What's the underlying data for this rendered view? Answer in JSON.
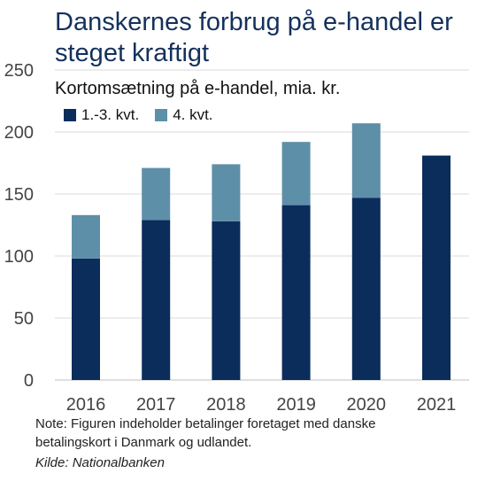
{
  "title": "Danskernes forbrug på e-handel er steget kraftigt",
  "subtitle": "Kortomsætning på e-handel, mia. kr.",
  "note": "Note: Figuren indeholder betalinger foretaget med danske betalingskort i Danmark og udlandet.",
  "source": "Kilde: Nationalbanken",
  "colors": {
    "series1": "#0b2d5c",
    "series2": "#5e8fa8",
    "grid": "#d9d9d9",
    "axis": "#444444"
  },
  "chart_data": {
    "type": "bar",
    "stacked": true,
    "title": "Danskernes forbrug på e-handel er steget kraftigt",
    "subtitle": "Kortomsætning på e-handel, mia. kr.",
    "categories": [
      "2016",
      "2017",
      "2018",
      "2019",
      "2020",
      "2021"
    ],
    "series": [
      {
        "name": "1.-3. kvt.",
        "values": [
          98,
          129,
          128,
          141,
          147,
          181
        ]
      },
      {
        "name": "4. kvt.",
        "values": [
          35,
          42,
          46,
          51,
          60,
          0
        ]
      }
    ],
    "ylim": [
      0,
      250
    ],
    "yticks": [
      0,
      50,
      100,
      150,
      200,
      250
    ],
    "grid": true,
    "legend": "top-left"
  }
}
